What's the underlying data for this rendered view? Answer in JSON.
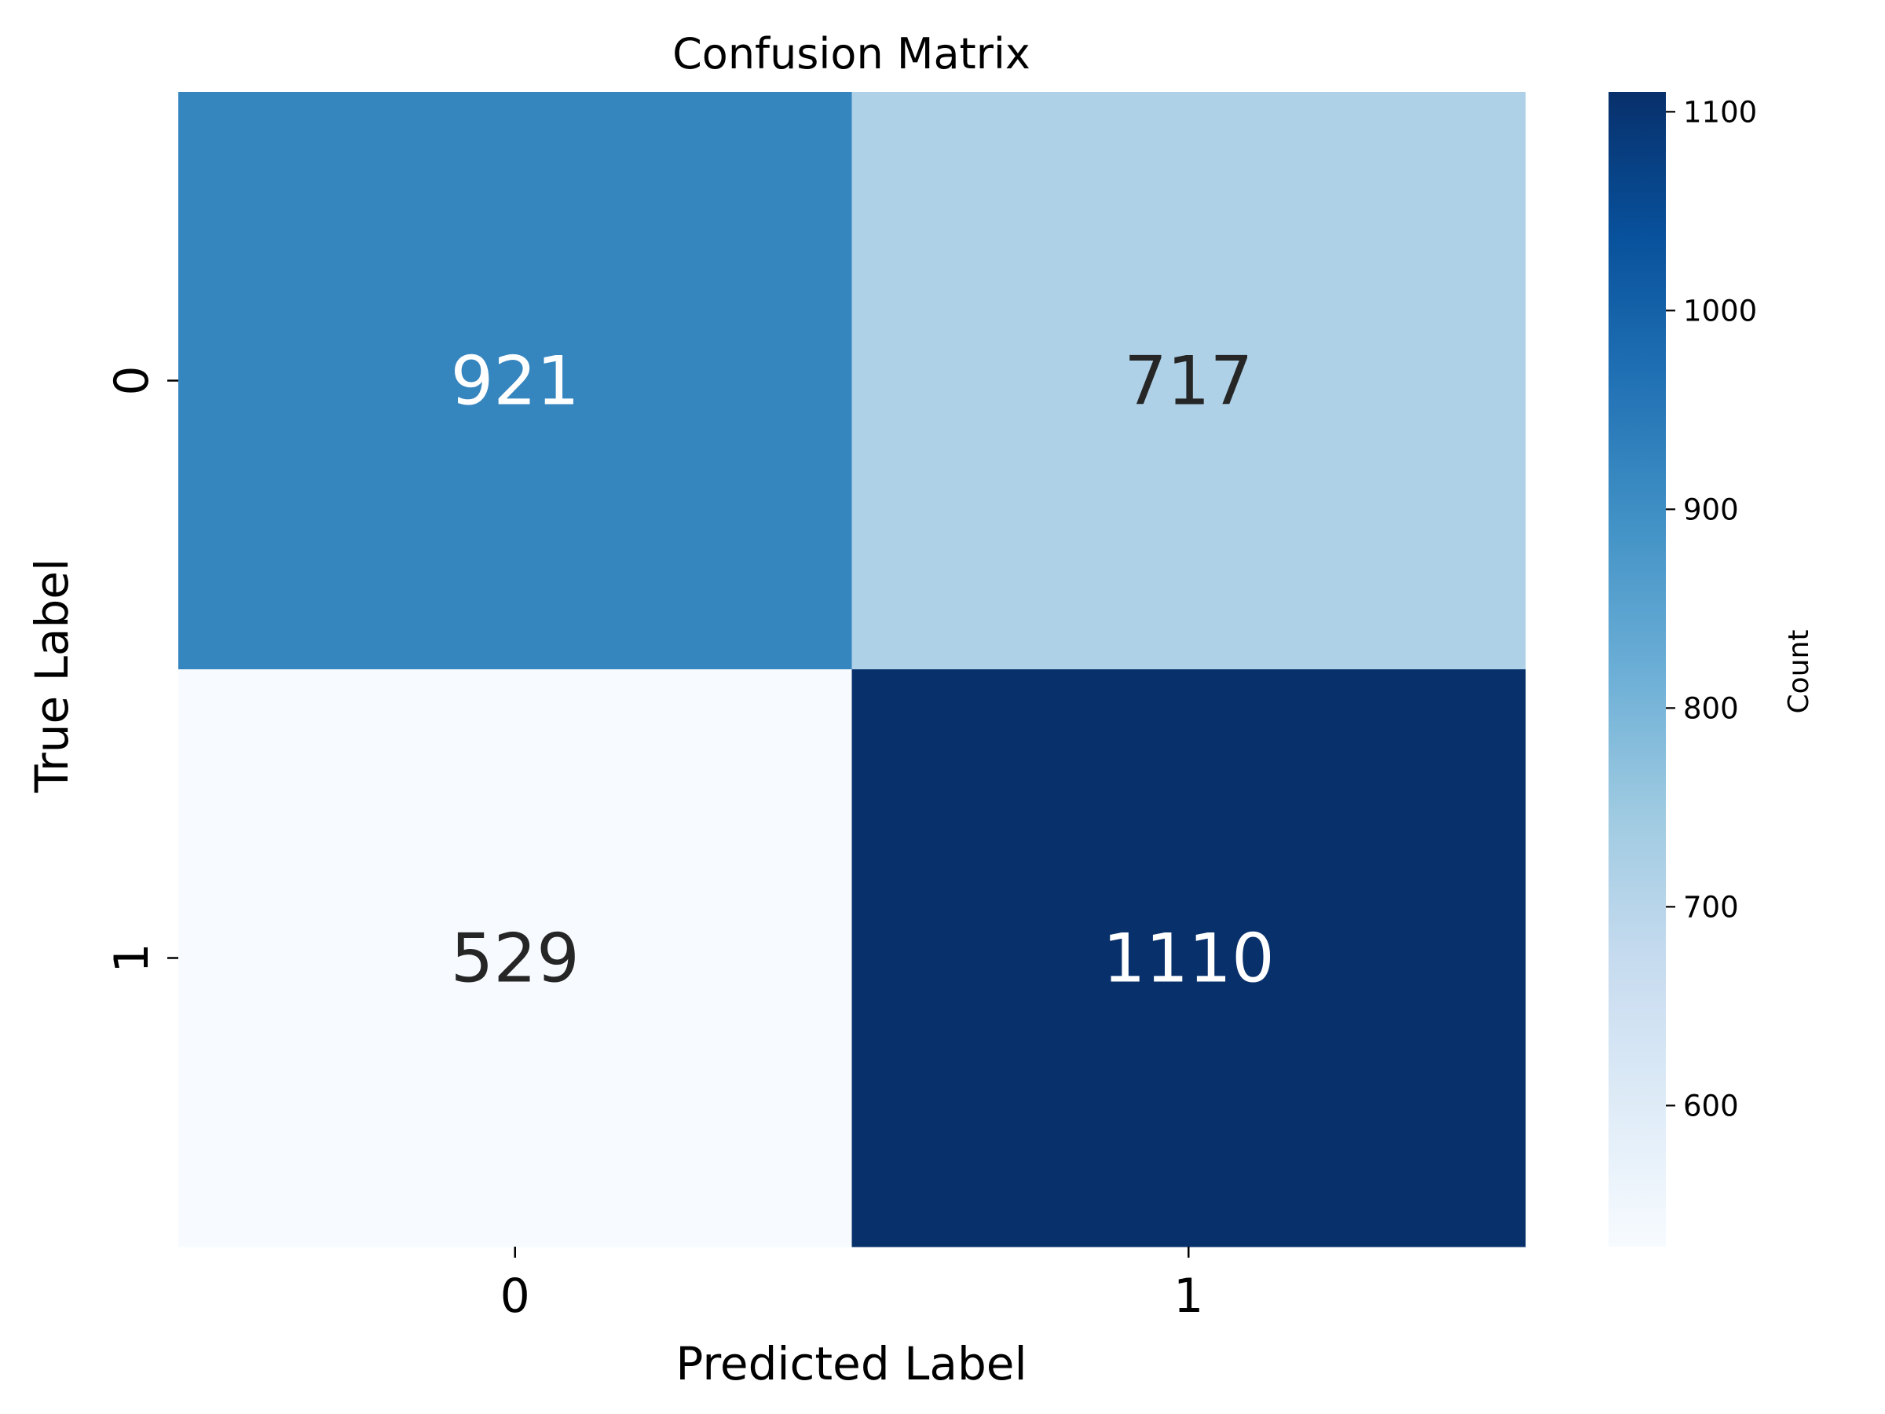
{
  "chart_data": {
    "type": "heatmap",
    "title": "Confusion Matrix",
    "xlabel": "Predicted Label",
    "ylabel": "True Label",
    "x_categories": [
      "0",
      "1"
    ],
    "y_categories": [
      "0",
      "1"
    ],
    "values": [
      [
        921,
        717
      ],
      [
        529,
        1110
      ]
    ],
    "colormap": "Blues",
    "colorbar": {
      "label": "Count",
      "min": 529,
      "max": 1110,
      "ticks": [
        600,
        700,
        800,
        900,
        1000,
        1100
      ]
    }
  }
}
